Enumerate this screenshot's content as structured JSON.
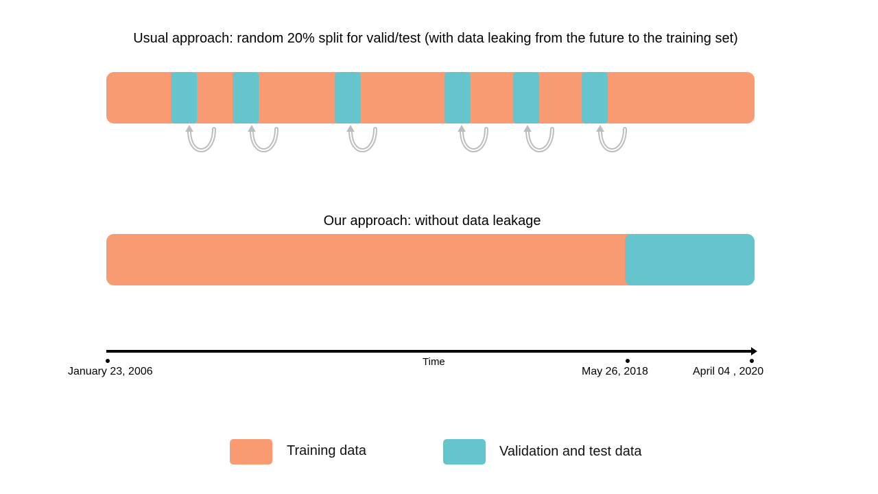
{
  "colors": {
    "training": "#F89B72",
    "validation": "#66C4CC",
    "arrow": "#BDBDBD",
    "timeline": "#000000"
  },
  "usual": {
    "title": "Usual approach: random 20% split for valid/test (with data leaking from the future to the training set)",
    "blocks": 6,
    "arrow_icon": "curved-leak-arrow"
  },
  "ours": {
    "title": "Our approach: without data leakage"
  },
  "timeline": {
    "label": "Time",
    "start_date": "January 23, 2006",
    "split_date": "May 26, 2018",
    "end_date": "April 04 , 2020"
  },
  "legend": {
    "training_label": "Training data",
    "validation_label": "Validation and test data"
  }
}
